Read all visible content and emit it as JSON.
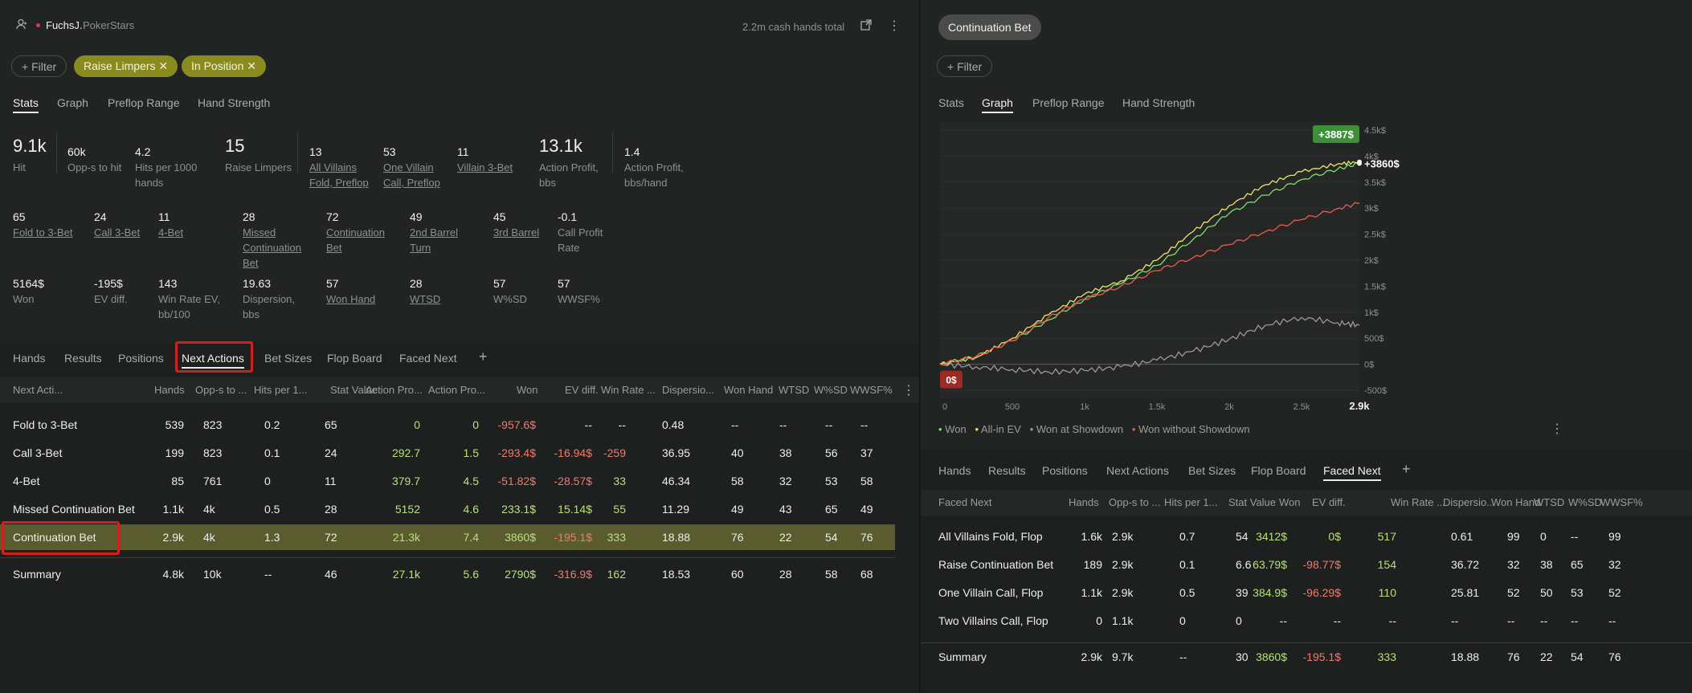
{
  "left": {
    "user": {
      "name": "FuchsJ.",
      "site": "PokerStars"
    },
    "hands_total": "2.2m cash hands total",
    "filter_label": "Filter",
    "chips": [
      "Raise Limpers",
      "In Position"
    ],
    "tabs": [
      "Stats",
      "Graph",
      "Preflop Range",
      "Hand Strength"
    ],
    "stats_row1": [
      {
        "value": "9.1k",
        "label": "Hit"
      },
      {
        "value": "60k",
        "label": "Opp-s to hit"
      },
      {
        "value": "4.2",
        "label": "Hits per 1000",
        "label2": "hands"
      },
      {
        "value": "15",
        "label": "Raise Limpers"
      },
      {
        "value": "13",
        "label": "All Villains",
        "label2": "Fold, Preflop"
      },
      {
        "value": "53",
        "label": "One Villain",
        "label2": "Call, Preflop"
      },
      {
        "value": "11",
        "label": "Villain 3-Bet"
      },
      {
        "value": "13.1k",
        "label": "Action Profit,",
        "label2": "bbs"
      },
      {
        "value": "1.4",
        "label": "Action Profit,",
        "label2": "bbs/hand"
      }
    ],
    "stats_row2": [
      {
        "value": "65",
        "label": "Fold to 3-Bet"
      },
      {
        "value": "24",
        "label": "Call 3-Bet"
      },
      {
        "value": "11",
        "label": "4-Bet"
      },
      {
        "value": "28",
        "label": "Missed",
        "label2": "Continuation",
        "label3": "Bet"
      },
      {
        "value": "72",
        "label": "Continuation",
        "label2": "Bet"
      },
      {
        "value": "49",
        "label": "2nd Barrel",
        "label2": "Turn"
      },
      {
        "value": "45",
        "label": "3rd Barrel"
      },
      {
        "value": "-0.1",
        "label": "Call Profit",
        "label2": "Rate"
      }
    ],
    "stats_row3": [
      {
        "value": "5164$",
        "label": "Won"
      },
      {
        "value": "-195$",
        "label": "EV diff."
      },
      {
        "value": "143",
        "label": "Win Rate EV,",
        "label2": "bb/100"
      },
      {
        "value": "19.63",
        "label": "Dispersion,",
        "label2": "bbs"
      },
      {
        "value": "57",
        "label": "Won Hand"
      },
      {
        "value": "28",
        "label": "WTSD"
      },
      {
        "value": "57",
        "label": "W%SD"
      },
      {
        "value": "57",
        "label": "WWSF%"
      }
    ],
    "sub_tabs": [
      "Hands",
      "Results",
      "Positions",
      "Next Actions",
      "Bet Sizes",
      "Flop Board",
      "Faced Next"
    ],
    "table": {
      "headers": [
        "Next Acti...",
        "Hands",
        "Opp-s to ...",
        "Hits per 1...",
        "Stat Value",
        "Action Pro...",
        "Action Pro...",
        "Won",
        "EV diff.",
        "Win Rate ...",
        "Dispersio...",
        "Won Hand",
        "WTSD",
        "W%SD",
        "WWSF%"
      ],
      "rows": [
        [
          "Fold to 3-Bet",
          "539",
          "823",
          "0.2",
          "65",
          "0",
          "0",
          "-957.6$",
          "--",
          "--",
          "0.48",
          "--",
          "--",
          "--",
          "--"
        ],
        [
          "Call 3-Bet",
          "199",
          "823",
          "0.1",
          "24",
          "292.7",
          "1.5",
          "-293.4$",
          "-16.94$",
          "-259",
          "36.95",
          "40",
          "38",
          "56",
          "37"
        ],
        [
          "4-Bet",
          "85",
          "761",
          "0",
          "11",
          "379.7",
          "4.5",
          "-51.82$",
          "-28.57$",
          "33",
          "46.34",
          "58",
          "32",
          "53",
          "58"
        ],
        [
          "Missed Continuation Bet",
          "1.1k",
          "4k",
          "0.5",
          "28",
          "5152",
          "4.6",
          "233.1$",
          "15.14$",
          "55",
          "11.29",
          "49",
          "43",
          "65",
          "49"
        ],
        [
          "Continuation Bet",
          "2.9k",
          "4k",
          "1.3",
          "72",
          "21.3k",
          "7.4",
          "3860$",
          "-195.1$",
          "333",
          "18.88",
          "76",
          "22",
          "54",
          "76"
        ]
      ],
      "summary": [
        "Summary",
        "4.8k",
        "10k",
        "--",
        "46",
        "27.1k",
        "5.6",
        "2790$",
        "-316.9$",
        "162",
        "18.53",
        "60",
        "28",
        "58",
        "68"
      ]
    }
  },
  "right": {
    "title_chip": "Continuation Bet",
    "filter_label": "Filter",
    "tabs": [
      "Stats",
      "Graph",
      "Preflop Range",
      "Hand Strength"
    ],
    "chart_data": {
      "type": "line",
      "x_ticks": [
        "0",
        "500",
        "1k",
        "1.5k",
        "2k",
        "2.5k",
        "2.9k"
      ],
      "y_ticks": [
        "4.5k$",
        "4k$",
        "3.5k$",
        "3k$",
        "2.5k$",
        "2k$",
        "1.5k$",
        "1k$",
        "500$",
        "0$",
        "-500$"
      ],
      "xlim": [
        0,
        2900
      ],
      "ylim": [
        -500,
        4500
      ],
      "series": [
        {
          "name": "Won",
          "color": "#7de06a",
          "x": [
            0,
            250,
            500,
            750,
            1000,
            1250,
            1500,
            1750,
            2000,
            2250,
            2500,
            2750,
            2900
          ],
          "values": [
            0,
            150,
            450,
            850,
            1250,
            1550,
            1900,
            2400,
            2900,
            3250,
            3550,
            3750,
            3860
          ]
        },
        {
          "name": "All-in EV",
          "color": "#e9e66a",
          "x": [
            0,
            250,
            500,
            750,
            1000,
            1250,
            1500,
            1750,
            2000,
            2250,
            2500,
            2750,
            2900
          ],
          "values": [
            0,
            130,
            500,
            950,
            1350,
            1600,
            2000,
            2550,
            3050,
            3450,
            3700,
            3850,
            3887
          ]
        },
        {
          "name": "Won at Showdown",
          "color": "#9a9a9a",
          "x": [
            0,
            250,
            500,
            750,
            1000,
            1250,
            1500,
            1750,
            2000,
            2250,
            2500,
            2750,
            2900
          ],
          "values": [
            0,
            -50,
            -100,
            -150,
            -120,
            -50,
            80,
            250,
            480,
            750,
            900,
            800,
            750
          ]
        },
        {
          "name": "Won without Showdown",
          "color": "#ec5b4c",
          "x": [
            0,
            250,
            500,
            750,
            1000,
            1250,
            1500,
            1750,
            2000,
            2250,
            2500,
            2750,
            2900
          ],
          "values": [
            0,
            150,
            450,
            900,
            1250,
            1500,
            1800,
            2050,
            2300,
            2550,
            2780,
            2990,
            3100
          ]
        }
      ],
      "badges": {
        "top": "+3887$",
        "end": "+3860$",
        "zero": "0$"
      }
    },
    "legend": [
      "Won",
      "All-in EV",
      "Won at Showdown",
      "Won without Showdown"
    ],
    "sub_tabs": [
      "Hands",
      "Results",
      "Positions",
      "Next Actions",
      "Bet Sizes",
      "Flop Board",
      "Faced Next"
    ],
    "table": {
      "headers": [
        "Faced Next",
        "Hands",
        "Opp-s to ...",
        "Hits per 1...",
        "Stat Value",
        "Won",
        "EV diff.",
        "Win Rate ...",
        "Dispersio...",
        "Won Hand",
        "WTSD",
        "W%SD",
        "WWSF%"
      ],
      "rows": [
        [
          "All Villains Fold, Flop",
          "1.6k",
          "2.9k",
          "0.7",
          "54",
          "3412$",
          "0$",
          "517",
          "0.61",
          "99",
          "0",
          "--",
          "99"
        ],
        [
          "Raise Continuation Bet",
          "189",
          "2.9k",
          "0.1",
          "6.6",
          "63.79$",
          "-98.77$",
          "154",
          "36.72",
          "32",
          "38",
          "65",
          "32"
        ],
        [
          "One Villain Call, Flop",
          "1.1k",
          "2.9k",
          "0.5",
          "39",
          "384.9$",
          "-96.29$",
          "110",
          "25.81",
          "52",
          "50",
          "53",
          "52"
        ],
        [
          "Two Villains Call, Flop",
          "0",
          "1.1k",
          "0",
          "0",
          "--",
          "--",
          "--",
          "--",
          "--",
          "--",
          "--",
          "--"
        ]
      ],
      "summary": [
        "Summary",
        "2.9k",
        "9.7k",
        "--",
        "30",
        "3860$",
        "-195.1$",
        "333",
        "18.88",
        "76",
        "22",
        "54",
        "76"
      ]
    }
  }
}
